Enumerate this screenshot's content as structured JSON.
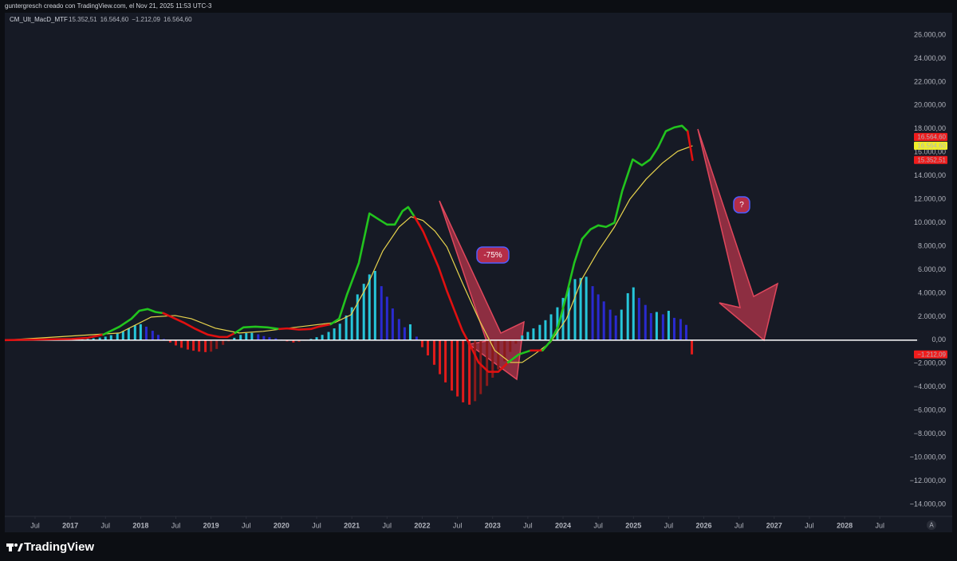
{
  "header": "guntergresch creado con TradingView.com, el Nov 21, 2025 11:53 UTC-3",
  "footer": {
    "brand": "TradingView"
  },
  "chart_data": {
    "type": "line",
    "indicator": {
      "name": "CM_Ult_MacD_MTF",
      "readouts": [
        {
          "label": "15.352,51",
          "color": "#f23645"
        },
        {
          "label": "16.564,60",
          "color": "#e8e84a"
        },
        {
          "label": "−1.212,09",
          "color": "#f23645"
        },
        {
          "label": "16.564,60",
          "color": "#f23645"
        }
      ]
    },
    "xlim": [
      2016.07,
      2029.03
    ],
    "xticks": [
      {
        "value": 2016.5,
        "label": "Jul"
      },
      2017,
      {
        "value": 2017.5,
        "label": "Jul"
      },
      2018,
      {
        "value": 2018.5,
        "label": "Jul"
      },
      2019,
      {
        "value": 2019.5,
        "label": "Jul"
      },
      2020,
      {
        "value": 2020.5,
        "label": "Jul"
      },
      2021,
      {
        "value": 2021.5,
        "label": "Jul"
      },
      2022,
      {
        "value": 2022.5,
        "label": "Jul"
      },
      2023,
      {
        "value": 2023.5,
        "label": "Jul"
      },
      2024,
      {
        "value": 2024.5,
        "label": "Jul"
      },
      2025,
      {
        "value": 2025.5,
        "label": "Jul"
      },
      2026,
      {
        "value": 2026.5,
        "label": "Jul"
      },
      2027,
      {
        "value": 2027.5,
        "label": "Jul"
      },
      2028,
      {
        "value": 2028.5,
        "label": "Jul"
      }
    ],
    "ylim": [
      -14475,
      26950
    ],
    "yticks": [
      {
        "value": -14000,
        "label": "−14.000,00"
      },
      {
        "value": -12000,
        "label": "−12.000,00"
      },
      {
        "value": -10000,
        "label": "−10.000,00"
      },
      {
        "value": -8000,
        "label": "−8.000,00"
      },
      {
        "value": -6000,
        "label": "−6.000,00"
      },
      {
        "value": -4000,
        "label": "−4.000,00"
      },
      {
        "value": -2000,
        "label": "−2.000,00"
      },
      {
        "value": 0,
        "label": "0,00"
      },
      {
        "value": 2000,
        "label": "2.000,00"
      },
      {
        "value": 4000,
        "label": "4.000,00"
      },
      {
        "value": 6000,
        "label": "6.000,00"
      },
      {
        "value": 8000,
        "label": "8.000,00"
      },
      {
        "value": 10000,
        "label": "10.000,00"
      },
      {
        "value": 12000,
        "label": "12.000,00"
      },
      {
        "value": 14000,
        "label": "14.000,00"
      },
      {
        "value": 16000,
        "label": "16.000,00"
      },
      {
        "value": 18000,
        "label": "18.000,00"
      },
      {
        "value": 20000,
        "label": "20.000,00"
      },
      {
        "value": 22000,
        "label": "22.000,00"
      },
      {
        "value": 24000,
        "label": "24.000,00"
      },
      {
        "value": 26000,
        "label": "26.000,00"
      }
    ],
    "grid": false,
    "zero_line": {
      "value": 0,
      "color": "#ffffff"
    },
    "series": [
      {
        "color": "#22c41e",
        "down_color": "#e01010",
        "x": [
          2016.07,
          2017.02,
          2017.25,
          2017.47,
          2017.7,
          2017.87,
          2017.98,
          2018.1,
          2018.21,
          2018.32,
          2018.44,
          2018.61,
          2018.78,
          2018.95,
          2019.12,
          2019.23,
          2019.34,
          2019.46,
          2019.63,
          2019.8,
          2019.97,
          2020.08,
          2020.25,
          2020.42,
          2020.53,
          2020.7,
          2020.82,
          2020.93,
          2021.1,
          2021.25,
          2021.38,
          2021.5,
          2021.61,
          2021.72,
          2021.8,
          2021.89,
          2022.01,
          2022.12,
          2022.23,
          2022.35,
          2022.46,
          2022.57,
          2022.69,
          2022.8,
          2022.94,
          2023.08,
          2023.22,
          2023.37,
          2023.54,
          2023.71,
          2023.82,
          2023.93,
          2024.05,
          2024.16,
          2024.27,
          2024.39,
          2024.5,
          2024.61,
          2024.73,
          2024.84,
          2024.99,
          2025.12,
          2025.24,
          2025.35,
          2025.46,
          2025.58,
          2025.69,
          2025.77,
          2025.84
        ],
        "values": [
          0,
          100,
          200,
          475,
          1150,
          1830,
          2500,
          2650,
          2400,
          2300,
          1970,
          1500,
          950,
          475,
          270,
          270,
          610,
          1090,
          1150,
          1090,
          950,
          1000,
          900,
          950,
          1150,
          1360,
          1830,
          3870,
          6590,
          10800,
          10300,
          9850,
          9850,
          11000,
          11340,
          10520,
          9300,
          7800,
          6250,
          4200,
          2500,
          815,
          -540,
          -1900,
          -2700,
          -2700,
          -1900,
          -1220,
          -880,
          -880,
          -100,
          1150,
          3870,
          6590,
          8620,
          9440,
          9780,
          9650,
          10000,
          12700,
          15400,
          14900,
          15400,
          16430,
          17800,
          18130,
          18270,
          17800,
          15352.51
        ]
      },
      {
        "color": "#e8d44d",
        "x": [
          2016.07,
          2017.7,
          2018.15,
          2018.49,
          2018.72,
          2019.06,
          2019.4,
          2019.74,
          2020.19,
          2020.76,
          2020.99,
          2021.21,
          2021.44,
          2021.67,
          2021.84,
          2022.01,
          2022.18,
          2022.35,
          2022.57,
          2022.8,
          2023.03,
          2023.25,
          2023.42,
          2023.59,
          2023.82,
          2024.05,
          2024.27,
          2024.5,
          2024.73,
          2024.95,
          2025.18,
          2025.41,
          2025.63,
          2025.84
        ],
        "values": [
          0,
          610,
          1970,
          2100,
          1830,
          1020,
          610,
          750,
          1090,
          1500,
          2170,
          4550,
          7600,
          9640,
          10520,
          10200,
          9300,
          7950,
          4890,
          1830,
          -880,
          -1900,
          -1900,
          -1220,
          -200,
          1830,
          5230,
          7600,
          9640,
          12020,
          13720,
          15080,
          16100,
          16564.6
        ]
      }
    ],
    "histogram": {
      "colors": {
        "up_rising": "#26c6da",
        "up_falling": "#2a2ad0",
        "down_falling": "#e01b1b",
        "down_rising": "#8b1a1a"
      },
      "x": [
        2017,
        2017.08,
        2017.17,
        2017.25,
        2017.33,
        2017.42,
        2017.5,
        2017.58,
        2017.67,
        2017.75,
        2017.83,
        2017.92,
        2018,
        2018.08,
        2018.17,
        2018.25,
        2018.33,
        2018.42,
        2018.5,
        2018.58,
        2018.67,
        2018.75,
        2018.83,
        2018.92,
        2019,
        2019.08,
        2019.17,
        2019.25,
        2019.33,
        2019.42,
        2019.5,
        2019.58,
        2019.67,
        2019.75,
        2019.83,
        2019.92,
        2020,
        2020.08,
        2020.17,
        2020.25,
        2020.33,
        2020.42,
        2020.5,
        2020.58,
        2020.67,
        2020.75,
        2020.83,
        2020.92,
        2021,
        2021.08,
        2021.17,
        2021.25,
        2021.33,
        2021.42,
        2021.5,
        2021.58,
        2021.67,
        2021.75,
        2021.83,
        2021.92,
        2022,
        2022.08,
        2022.17,
        2022.25,
        2022.33,
        2022.42,
        2022.5,
        2022.58,
        2022.67,
        2022.75,
        2022.83,
        2022.92,
        2023,
        2023.08,
        2023.17,
        2023.25,
        2023.33,
        2023.42,
        2023.5,
        2023.58,
        2023.67,
        2023.75,
        2023.83,
        2023.92,
        2024,
        2024.08,
        2024.17,
        2024.25,
        2024.33,
        2024.42,
        2024.5,
        2024.58,
        2024.67,
        2024.75,
        2024.83,
        2024.92,
        2025,
        2025.08,
        2025.17,
        2025.25,
        2025.33,
        2025.42,
        2025.5,
        2025.58,
        2025.67,
        2025.75,
        2025.83
      ],
      "values": [
        30,
        50,
        70,
        100,
        150,
        220,
        300,
        420,
        560,
        760,
        1000,
        1250,
        1360,
        1150,
        800,
        450,
        100,
        -200,
        -450,
        -650,
        -800,
        -900,
        -980,
        -1020,
        -980,
        -750,
        -400,
        -100,
        200,
        450,
        600,
        620,
        500,
        350,
        250,
        150,
        50,
        -100,
        -200,
        -150,
        -50,
        100,
        250,
        450,
        700,
        1000,
        1400,
        2100,
        2800,
        3900,
        4800,
        5600,
        5900,
        4600,
        3700,
        2700,
        1800,
        1100,
        1350,
        300,
        -600,
        -1300,
        -2100,
        -2900,
        -3600,
        -4300,
        -4800,
        -5300,
        -5500,
        -5200,
        -4600,
        -3900,
        -3200,
        -2500,
        -1800,
        -1000,
        -300,
        400,
        700,
        1000,
        1300,
        1700,
        2200,
        2800,
        3600,
        4500,
        5200,
        5300,
        5400,
        4600,
        3900,
        3300,
        2600,
        2100,
        2600,
        4000,
        4500,
        3600,
        3000,
        2300,
        2400,
        2200,
        2500,
        1900,
        1800,
        1300,
        -1212.09
      ]
    },
    "price_tags": [
      {
        "value": 16564.6,
        "label": "16.564,60",
        "color": "#f01c1c",
        "text_color": "#ffffff"
      },
      {
        "value": 16564.6,
        "label": "16.564,60",
        "color": "#f0ee2a",
        "text_color": "#000000"
      },
      {
        "value": 15352.51,
        "label": "15.352,51",
        "color": "#f01c1c",
        "text_color": "#ffffff"
      },
      {
        "value": -1212.09,
        "label": "−1.212,09",
        "color": "#f01c1c",
        "text_color": "#ffffff"
      }
    ],
    "annotations": [
      {
        "text": "-75%"
      },
      {
        "text": "?"
      }
    ],
    "auto_button": "A"
  }
}
